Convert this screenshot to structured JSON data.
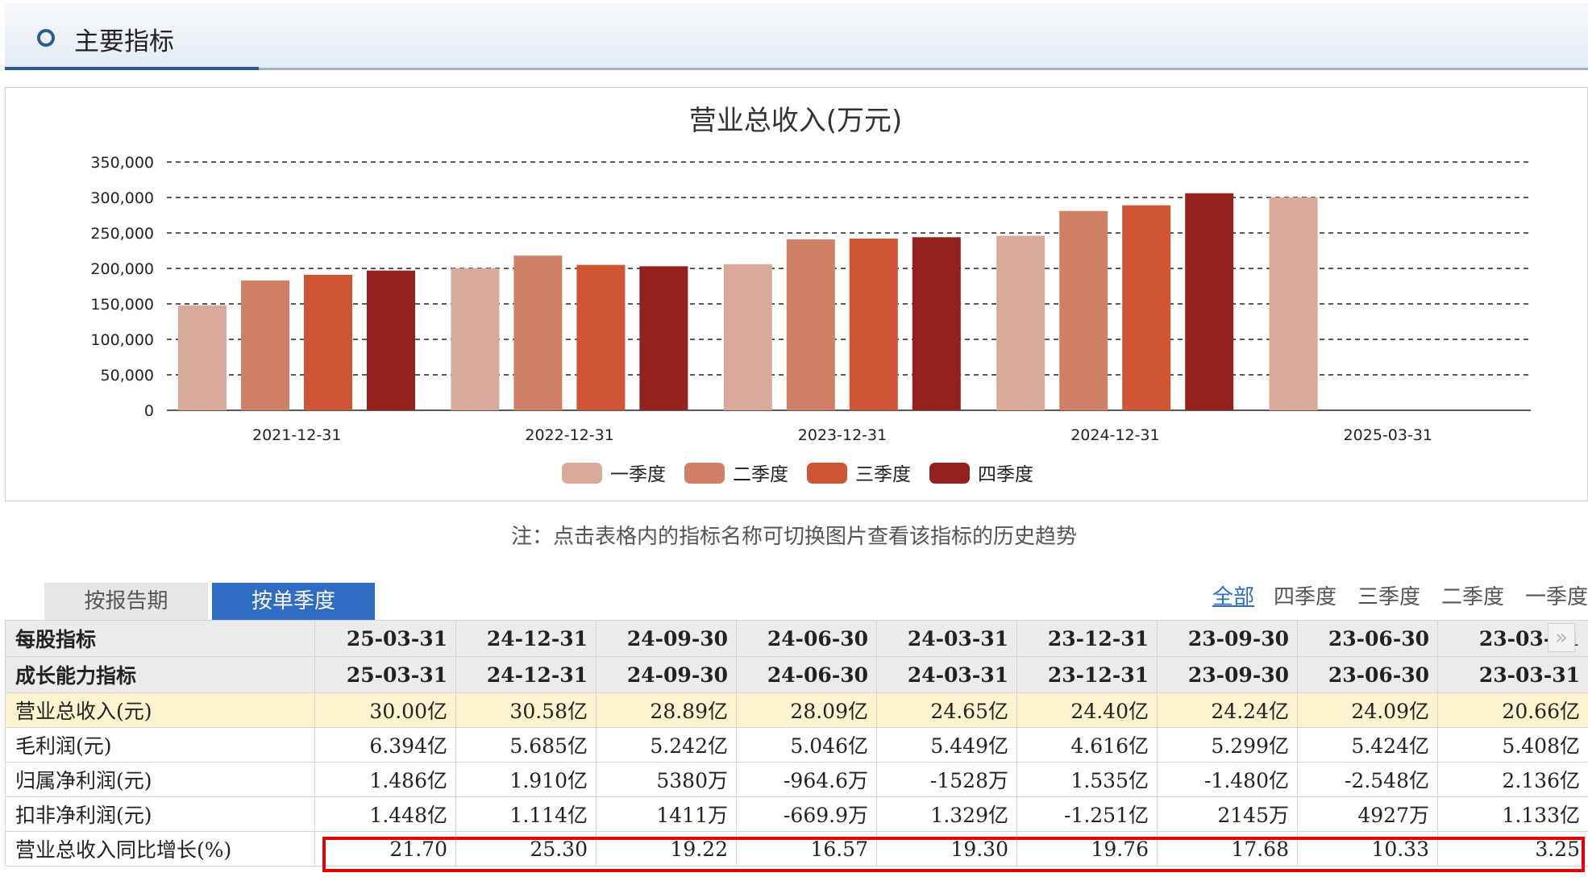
{
  "section": {
    "title": "主要指标"
  },
  "chart_data": {
    "type": "bar",
    "title": "营业总收入(万元)",
    "categories": [
      "2021-12-31",
      "2022-12-31",
      "2023-12-31",
      "2024-12-31",
      "2025-03-31"
    ],
    "ylim": [
      0,
      350000
    ],
    "yticks": [
      "0",
      "50,000",
      "100,000",
      "150,000",
      "200,000",
      "250,000",
      "300,000",
      "350,000"
    ],
    "grid": true,
    "legend_position": "bottom-center",
    "series": [
      {
        "name": "一季度",
        "color": "#d9aa9a",
        "values": [
          148000,
          200000,
          206000,
          246000,
          300000
        ]
      },
      {
        "name": "二季度",
        "color": "#d08064",
        "values": [
          183000,
          218000,
          241000,
          281000,
          null
        ]
      },
      {
        "name": "三季度",
        "color": "#d05535",
        "values": [
          191000,
          205000,
          242000,
          289000,
          null
        ]
      },
      {
        "name": "四季度",
        "color": "#93221e",
        "values": [
          197000,
          203000,
          244000,
          306000,
          null
        ]
      }
    ]
  },
  "note": "注：点击表格内的指标名称可切换图片查看该指标的历史趋势",
  "tabs": {
    "period": "按报告期",
    "single": "按单季度"
  },
  "filters": {
    "all": "全部",
    "q4": "四季度",
    "q3": "三季度",
    "q2": "二季度",
    "q1": "一季度"
  },
  "scroll_glyph": "»",
  "table": {
    "header1": {
      "label": "每股指标",
      "dates": [
        "25-03-31",
        "24-12-31",
        "24-09-30",
        "24-06-30",
        "24-03-31",
        "23-12-31",
        "23-09-30",
        "23-06-30",
        "23-03-31"
      ]
    },
    "header2": {
      "label": "成长能力指标",
      "dates": [
        "25-03-31",
        "24-12-31",
        "24-09-30",
        "24-06-30",
        "24-03-31",
        "23-12-31",
        "23-09-30",
        "23-06-30",
        "23-03-31"
      ]
    },
    "rows": [
      {
        "label": "营业总收入(元)",
        "values": [
          "30.00亿",
          "30.58亿",
          "28.89亿",
          "28.09亿",
          "24.65亿",
          "24.40亿",
          "24.24亿",
          "24.09亿",
          "20.66亿"
        ]
      },
      {
        "label": "毛利润(元)",
        "values": [
          "6.394亿",
          "5.685亿",
          "5.242亿",
          "5.046亿",
          "5.449亿",
          "4.616亿",
          "5.299亿",
          "5.424亿",
          "5.408亿"
        ]
      },
      {
        "label": "归属净利润(元)",
        "values": [
          "1.486亿",
          "1.910亿",
          "5380万",
          "-964.6万",
          "-1528万",
          "1.535亿",
          "-1.480亿",
          "-2.548亿",
          "2.136亿"
        ]
      },
      {
        "label": "扣非净利润(元)",
        "values": [
          "1.448亿",
          "1.114亿",
          "1411万",
          "-669.9万",
          "1.329亿",
          "-1.251亿",
          "2145万",
          "4927万",
          "1.133亿"
        ]
      },
      {
        "label": "营业总收入同比增长(%)",
        "values": [
          "21.70",
          "25.30",
          "19.22",
          "16.57",
          "19.30",
          "19.76",
          "17.68",
          "10.33",
          "3.25"
        ]
      }
    ]
  }
}
